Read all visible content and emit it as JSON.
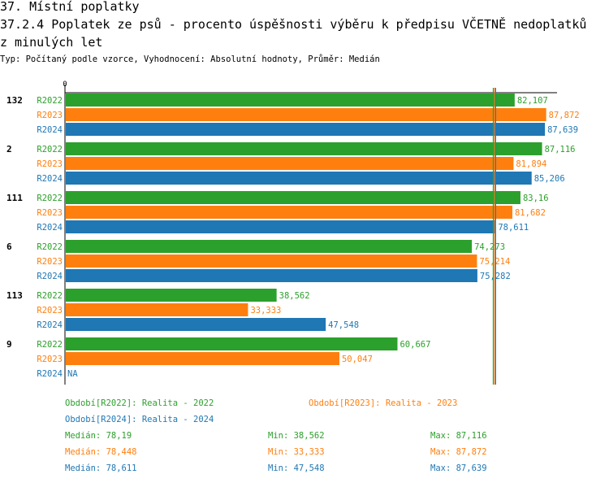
{
  "header": {
    "title_line1": "37. Místní poplatky",
    "title_line2": "37.2.4 Poplatek ze psů - procento úspěšnosti výběru k předpisu VČETNĚ nedoplatků",
    "title_line3": "z minulých let",
    "subtitle": "Typ: Počítaný podle vzorce, Vyhodnocení: Absolutní hodnoty, Průměr: Medián"
  },
  "colors": {
    "R2022": "#2ca02c",
    "R2023": "#ff7f0e",
    "R2024": "#1f77b4"
  },
  "chart_data": {
    "type": "bar",
    "orientation": "horizontal",
    "axis_min": 0,
    "axis_max": 90,
    "axis_tick_label": "0",
    "series_names": [
      "R2022",
      "R2023",
      "R2024"
    ],
    "groups": [
      {
        "label": "132",
        "values": [
          82.107,
          87.872,
          87.639
        ],
        "value_labels": [
          "82,107",
          "87,872",
          "87,639"
        ]
      },
      {
        "label": "2",
        "values": [
          87.116,
          81.894,
          85.206
        ],
        "value_labels": [
          "87,116",
          "81,894",
          "85,206"
        ]
      },
      {
        "label": "111",
        "values": [
          83.16,
          81.682,
          78.611
        ],
        "value_labels": [
          "83,16",
          "81,682",
          "78,611"
        ]
      },
      {
        "label": "6",
        "values": [
          74.273,
          75.214,
          75.282
        ],
        "value_labels": [
          "74,273",
          "75,214",
          "75,282"
        ]
      },
      {
        "label": "113",
        "values": [
          38.562,
          33.333,
          47.548
        ],
        "value_labels": [
          "38,562",
          "33,333",
          "47,548"
        ]
      },
      {
        "label": "9",
        "values": [
          60.667,
          50.047,
          null
        ],
        "value_labels": [
          "60,667",
          "50,047",
          "NA"
        ]
      }
    ],
    "median_lines": [
      {
        "series": "R2022",
        "value": 78.19
      },
      {
        "series": "R2023",
        "value": 78.448
      },
      {
        "series": "R2024",
        "value": 78.611
      }
    ]
  },
  "legend": {
    "period_r2022": "Období[R2022]: Realita - 2022",
    "period_r2023": "Období[R2023]: Realita - 2023",
    "period_r2024": "Období[R2024]: Realita - 2024",
    "stats": [
      {
        "series": "R2022",
        "median": "Medián: 78,19",
        "min": "Min: 38,562",
        "max": "Max: 87,116"
      },
      {
        "series": "R2023",
        "median": "Medián: 78,448",
        "min": "Min: 33,333",
        "max": "Max: 87,872"
      },
      {
        "series": "R2024",
        "median": "Medián: 78,611",
        "min": "Min: 47,548",
        "max": "Max: 87,639"
      }
    ]
  }
}
